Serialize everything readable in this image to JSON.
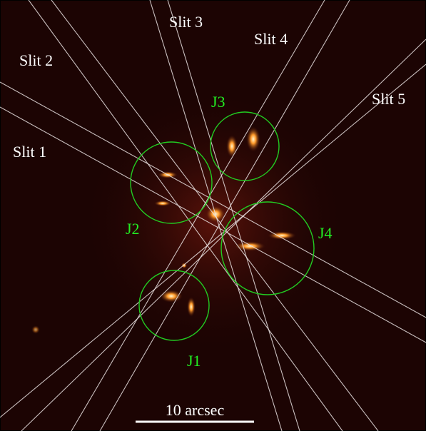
{
  "slits": [
    {
      "label": "Slit 1"
    },
    {
      "label": "Slit 2"
    },
    {
      "label": "Slit 3"
    },
    {
      "label": "Slit 4"
    },
    {
      "label": "Slit 5"
    }
  ],
  "regions": [
    {
      "label": "J1"
    },
    {
      "label": "J2"
    },
    {
      "label": "J3"
    },
    {
      "label": "J4"
    }
  ],
  "scale_bar": {
    "label": "10 arcsec"
  }
}
